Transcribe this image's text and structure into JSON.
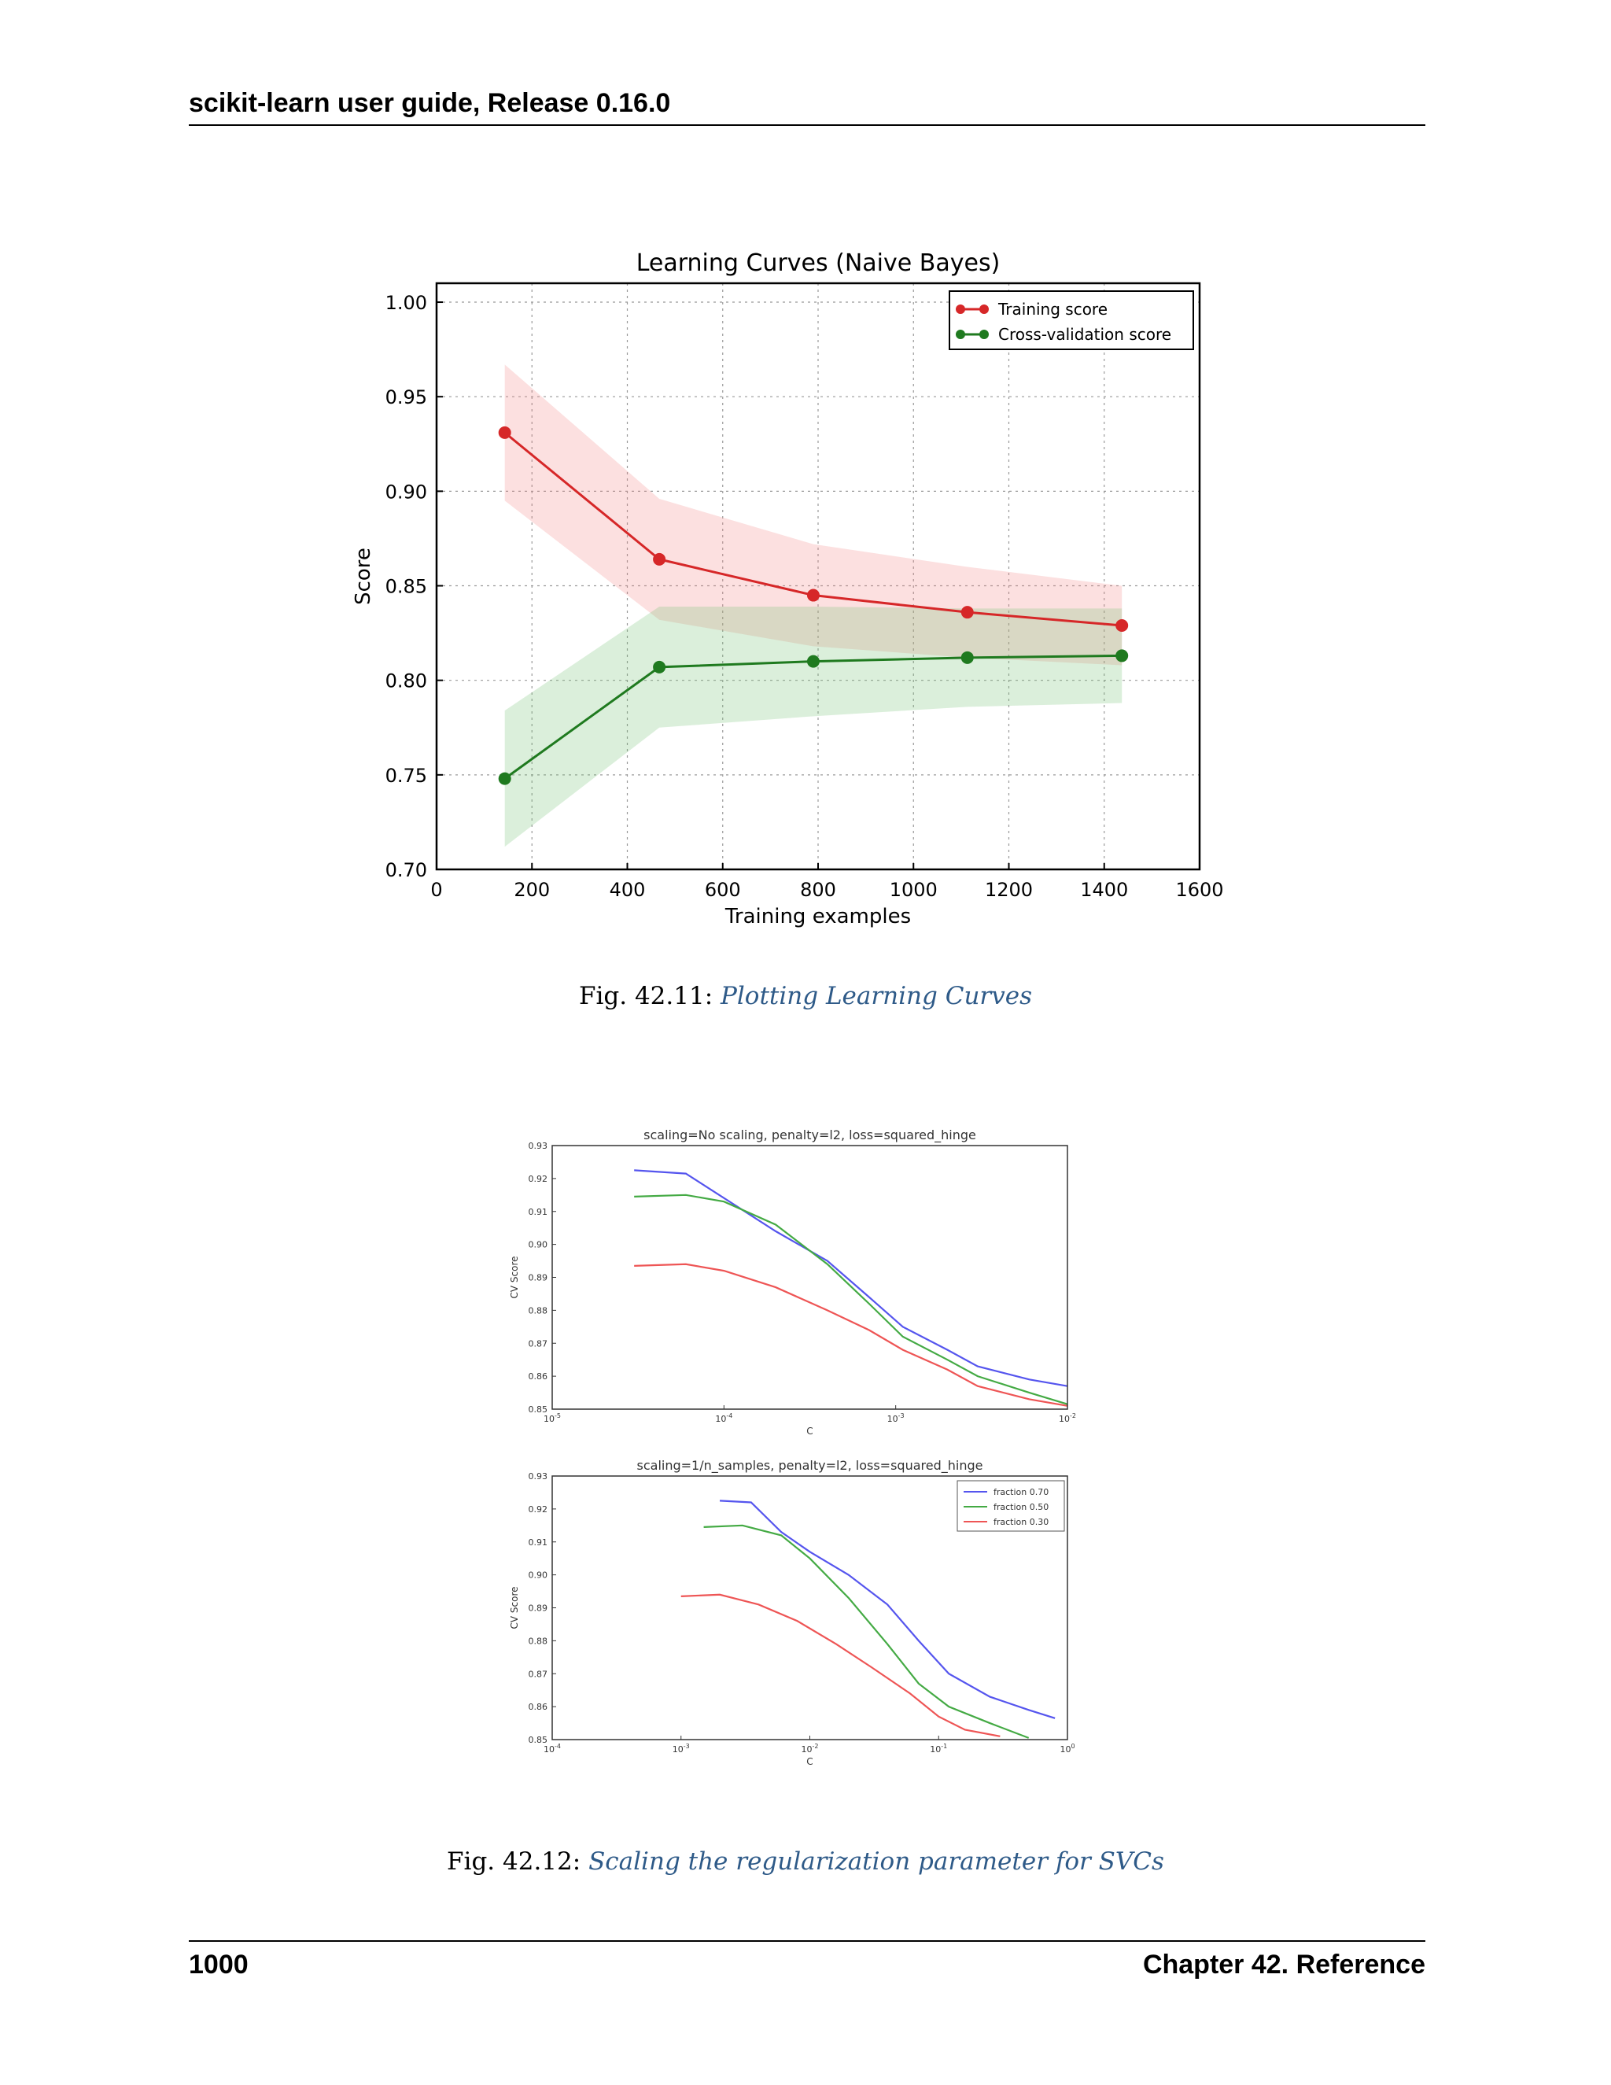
{
  "header": {
    "running_title": "scikit-learn user guide, Release 0.16.0"
  },
  "footer": {
    "page_number": "1000",
    "chapter": "Chapter 42.  Reference"
  },
  "figures": [
    {
      "label": "Fig.  42.11: ",
      "link_text": "Plotting Learning Curves"
    },
    {
      "label": "Fig.  42.12: ",
      "link_text": "Scaling the regularization parameter for SVCs"
    }
  ],
  "colors": {
    "training": "#d62728",
    "cv": "#1f7a1f",
    "blue": "#5555ee",
    "green": "#44aa44",
    "red": "#ee5555",
    "link": "#2e5a88"
  },
  "chart_data": [
    {
      "type": "line",
      "title": "Learning Curves (Naive Bayes)",
      "xlabel": "Training examples",
      "ylabel": "Score",
      "xlim": [
        0,
        1600
      ],
      "ylim": [
        0.7,
        1.01
      ],
      "grid": true,
      "legend_position": "top-right",
      "xticks": [
        "0",
        "200",
        "400",
        "600",
        "800",
        "1000",
        "1200",
        "1400",
        "1600"
      ],
      "yticks": [
        "0.70",
        "0.75",
        "0.80",
        "0.85",
        "0.90",
        "0.95",
        "1.00"
      ],
      "x": [
        143,
        467,
        790,
        1113,
        1437
      ],
      "series": [
        {
          "name": "Training score",
          "values": [
            0.931,
            0.864,
            0.845,
            0.836,
            0.829
          ],
          "band_low": [
            0.895,
            0.832,
            0.818,
            0.812,
            0.808
          ],
          "band_high": [
            0.967,
            0.896,
            0.872,
            0.86,
            0.85
          ]
        },
        {
          "name": "Cross-validation score",
          "values": [
            0.748,
            0.807,
            0.81,
            0.812,
            0.813
          ],
          "band_low": [
            0.712,
            0.775,
            0.781,
            0.786,
            0.788
          ],
          "band_high": [
            0.784,
            0.839,
            0.839,
            0.838,
            0.838
          ]
        }
      ]
    },
    {
      "type": "line",
      "title": "scaling=No scaling, penalty=l2, loss=squared_hinge",
      "xlabel": "C",
      "ylabel": "CV Score",
      "xscale": "log",
      "xlim_exp": [
        -5,
        -2
      ],
      "ylim": [
        0.85,
        0.93
      ],
      "xticks": [
        {
          "base": "10",
          "exp": "-5"
        },
        {
          "base": "10",
          "exp": "-4"
        },
        {
          "base": "10",
          "exp": "-3"
        },
        {
          "base": "10",
          "exp": "-2"
        }
      ],
      "yticks": [
        "0.85",
        "0.86",
        "0.87",
        "0.88",
        "0.89",
        "0.90",
        "0.91",
        "0.92",
        "0.93"
      ],
      "series": [
        {
          "color": "blue",
          "x": [
            3e-05,
            6e-05,
            0.0002,
            0.0004,
            0.0007,
            0.0011,
            0.002,
            0.003,
            0.006,
            0.01
          ],
          "values": [
            0.9225,
            0.9215,
            0.904,
            0.895,
            0.884,
            0.875,
            0.868,
            0.863,
            0.859,
            0.857
          ]
        },
        {
          "color": "green",
          "x": [
            3e-05,
            6e-05,
            0.0001,
            0.0002,
            0.0004,
            0.0007,
            0.0011,
            0.002,
            0.003,
            0.006,
            0.01
          ],
          "values": [
            0.9145,
            0.915,
            0.913,
            0.906,
            0.894,
            0.882,
            0.872,
            0.865,
            0.86,
            0.855,
            0.8515
          ]
        },
        {
          "color": "red",
          "x": [
            3e-05,
            6e-05,
            0.0001,
            0.0002,
            0.0004,
            0.0007,
            0.0011,
            0.002,
            0.003,
            0.006,
            0.01
          ],
          "values": [
            0.8935,
            0.894,
            0.892,
            0.887,
            0.88,
            0.874,
            0.868,
            0.862,
            0.857,
            0.853,
            0.851
          ]
        }
      ]
    },
    {
      "type": "line",
      "title": "scaling=1/n_samples, penalty=l2, loss=squared_hinge",
      "xlabel": "C",
      "ylabel": "CV Score",
      "xscale": "log",
      "xlim_exp": [
        -4,
        0
      ],
      "ylim": [
        0.85,
        0.93
      ],
      "legend_position": "top-right",
      "xticks": [
        {
          "base": "10",
          "exp": "-4"
        },
        {
          "base": "10",
          "exp": "-3"
        },
        {
          "base": "10",
          "exp": "-2"
        },
        {
          "base": "10",
          "exp": "-1"
        },
        {
          "base": "10",
          "exp": "0"
        }
      ],
      "yticks": [
        "0.85",
        "0.86",
        "0.87",
        "0.88",
        "0.89",
        "0.90",
        "0.91",
        "0.92",
        "0.93"
      ],
      "series": [
        {
          "name": "fraction 0.70",
          "color": "blue",
          "x": [
            0.002,
            0.0035,
            0.006,
            0.01,
            0.02,
            0.04,
            0.07,
            0.12,
            0.25,
            0.5,
            0.8
          ],
          "values": [
            0.9225,
            0.922,
            0.913,
            0.907,
            0.9,
            0.891,
            0.88,
            0.87,
            0.863,
            0.859,
            0.8565
          ]
        },
        {
          "name": "fraction 0.50",
          "color": "green",
          "x": [
            0.0015,
            0.003,
            0.006,
            0.01,
            0.02,
            0.04,
            0.07,
            0.12,
            0.25,
            0.5
          ],
          "values": [
            0.9145,
            0.915,
            0.912,
            0.905,
            0.893,
            0.879,
            0.867,
            0.86,
            0.855,
            0.8505
          ]
        },
        {
          "name": "fraction 0.30",
          "color": "red",
          "x": [
            0.001,
            0.002,
            0.004,
            0.008,
            0.016,
            0.03,
            0.06,
            0.1,
            0.16,
            0.3
          ],
          "values": [
            0.8935,
            0.894,
            0.891,
            0.886,
            0.879,
            0.872,
            0.864,
            0.857,
            0.853,
            0.851
          ]
        }
      ]
    }
  ]
}
